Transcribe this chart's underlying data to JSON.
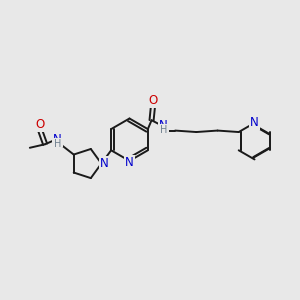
{
  "bg_color": "#e8e8e8",
  "bond_color": "#1a1a1a",
  "N_color": "#0000cc",
  "O_color": "#cc0000",
  "H_color": "#708090",
  "lw": 1.4,
  "fs": 8.5,
  "figsize": [
    3.0,
    3.0
  ],
  "dpi": 100,
  "xlim": [
    0,
    10
  ],
  "ylim": [
    0,
    10
  ]
}
